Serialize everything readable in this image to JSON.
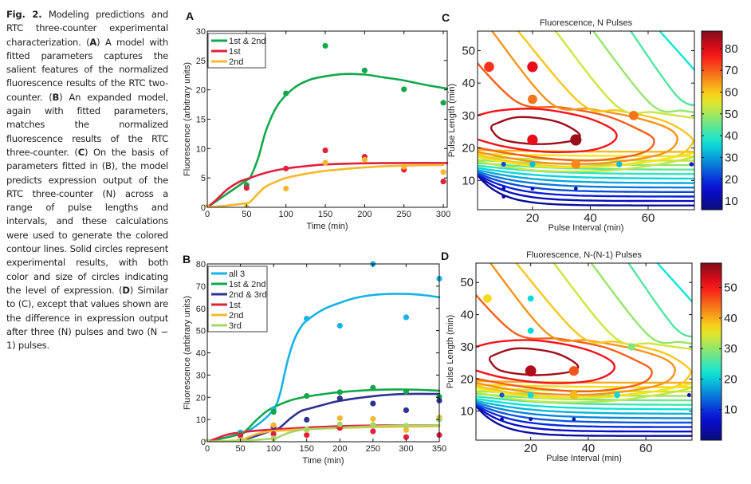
{
  "caption": {
    "fig_label": "Fig. 2.",
    "segments": [
      {
        "t": "Fig. 2.",
        "b": true
      },
      {
        "t": " Modeling predictions and RTC three-counter experimental characterization. ("
      },
      {
        "t": "A",
        "b": true
      },
      {
        "t": ") A model with fitted parameters captures the salient features of the normalized fluorescence results of the RTC two-counter. ("
      },
      {
        "t": "B",
        "b": true
      },
      {
        "t": ") An expanded model, again with fitted parameters, matches the normalized fluorescence results of the RTC three-counter. ("
      },
      {
        "t": "C",
        "b": true
      },
      {
        "t": ") On the basis of parameters fitted in (B), the model predicts expression output of the RTC three-counter (N) across a range of pulse lengths and intervals, and these calculations were used to generate the colored contour lines. Solid circles represent experimental results, with both color and size of circles indicating the level of expression. ("
      },
      {
        "t": "D",
        "b": true
      },
      {
        "t": ") Similar to (C), except that values shown are the difference in expression output after three (N) pulses and two (N − 1) pulses."
      }
    ]
  },
  "chart_data": [
    {
      "panel": "A",
      "type": "line",
      "title": "",
      "xlabel": "Time (min)",
      "ylabel": "Fluorescence (arbitrary units)",
      "xlim": [
        0,
        305
      ],
      "ylim": [
        0,
        30
      ],
      "xticks": [
        0,
        50,
        100,
        150,
        200,
        250,
        300
      ],
      "yticks": [
        0,
        5,
        10,
        15,
        20,
        25,
        30
      ],
      "legend_position": "top-left",
      "series": [
        {
          "name": "1st & 2nd",
          "color": "#12a84a",
          "curve": [
            [
              0,
              0
            ],
            [
              25,
              2.3
            ],
            [
              50,
              4.6
            ],
            [
              55,
              5.2
            ],
            [
              65,
              8.5
            ],
            [
              75,
              13.2
            ],
            [
              90,
              17.5
            ],
            [
              110,
              20.3
            ],
            [
              130,
              21.7
            ],
            [
              150,
              22.3
            ],
            [
              175,
              22.7
            ],
            [
              200,
              22.6
            ],
            [
              225,
              22.1
            ],
            [
              250,
              21.6
            ],
            [
              275,
              20.9
            ],
            [
              305,
              20.2
            ]
          ],
          "points": [
            [
              0,
              0
            ],
            [
              50,
              3.8
            ],
            [
              100,
              19.4
            ],
            [
              150,
              27.5
            ],
            [
              200,
              23.3
            ],
            [
              250,
              20.1
            ],
            [
              300,
              17.8
            ]
          ]
        },
        {
          "name": "1st",
          "color": "#e2203c",
          "curve": [
            [
              0,
              0
            ],
            [
              10,
              1.1
            ],
            [
              25,
              3.0
            ],
            [
              40,
              4.3
            ],
            [
              50,
              4.8
            ],
            [
              75,
              5.9
            ],
            [
              100,
              6.6
            ],
            [
              125,
              7.0
            ],
            [
              150,
              7.3
            ],
            [
              200,
              7.5
            ],
            [
              250,
              7.55
            ],
            [
              305,
              7.55
            ]
          ],
          "points": [
            [
              0,
              0
            ],
            [
              50,
              3.3
            ],
            [
              100,
              6.6
            ],
            [
              150,
              9.7
            ],
            [
              200,
              8.6
            ],
            [
              250,
              6.4
            ],
            [
              300,
              4.4
            ]
          ]
        },
        {
          "name": "2nd",
          "color": "#f4b82e",
          "curve": [
            [
              0,
              0
            ],
            [
              25,
              0.3
            ],
            [
              50,
              0.7
            ],
            [
              55,
              1.0
            ],
            [
              65,
              2.4
            ],
            [
              75,
              3.6
            ],
            [
              90,
              4.5
            ],
            [
              100,
              5.0
            ],
            [
              125,
              5.7
            ],
            [
              150,
              6.2
            ],
            [
              200,
              6.8
            ],
            [
              250,
              7.1
            ],
            [
              300,
              7.2
            ]
          ],
          "points": [
            [
              0,
              0
            ],
            [
              50,
              0
            ],
            [
              100,
              3.2
            ],
            [
              150,
              7.6
            ],
            [
              200,
              8.1
            ],
            [
              250,
              6.9
            ],
            [
              300,
              6.0
            ]
          ]
        }
      ]
    },
    {
      "panel": "B",
      "type": "line",
      "title": "",
      "xlabel": "Time (min)",
      "ylabel": "Fluorescence (arbitrary units)",
      "xlim": [
        0,
        350
      ],
      "ylim": [
        0,
        80
      ],
      "xticks": [
        0,
        50,
        100,
        150,
        200,
        250,
        300,
        350
      ],
      "yticks": [
        0,
        10,
        20,
        30,
        40,
        50,
        60,
        70,
        80
      ],
      "legend_position": "top-left",
      "series": [
        {
          "name": "all 3",
          "color": "#16b2e8",
          "curve": [
            [
              0,
              0
            ],
            [
              50,
              3.5
            ],
            [
              75,
              7.5
            ],
            [
              100,
              14.5
            ],
            [
              110,
              22
            ],
            [
              120,
              35
            ],
            [
              130,
              45
            ],
            [
              140,
              51
            ],
            [
              150,
              54.5
            ],
            [
              175,
              59.5
            ],
            [
              200,
              62.5
            ],
            [
              225,
              64.8
            ],
            [
              250,
              66
            ],
            [
              275,
              66.5
            ],
            [
              300,
              66.5
            ],
            [
              325,
              66
            ],
            [
              350,
              65
            ]
          ],
          "points": [
            [
              0,
              0
            ],
            [
              50,
              4.2
            ],
            [
              100,
              14.5
            ],
            [
              150,
              55.4
            ],
            [
              200,
              52.2
            ],
            [
              250,
              80
            ],
            [
              300,
              56
            ],
            [
              350,
              73.4
            ]
          ]
        },
        {
          "name": "1st & 2nd",
          "color": "#12a84a",
          "curve": [
            [
              0,
              0
            ],
            [
              50,
              3.5
            ],
            [
              60,
              5.5
            ],
            [
              75,
              10
            ],
            [
              90,
              13.8
            ],
            [
              100,
              15.5
            ],
            [
              125,
              18.6
            ],
            [
              150,
              20.3
            ],
            [
              175,
              21.4
            ],
            [
              200,
              22.3
            ],
            [
              250,
              23.3
            ],
            [
              300,
              23.5
            ],
            [
              350,
              23
            ]
          ],
          "points": [
            [
              0,
              0
            ],
            [
              50,
              3.5
            ],
            [
              100,
              13.4
            ],
            [
              150,
              20.6
            ],
            [
              200,
              22.3
            ],
            [
              250,
              24.3
            ],
            [
              300,
              22.6
            ],
            [
              350,
              20.2
            ]
          ]
        },
        {
          "name": "2nd & 3rd",
          "color": "#2e3392",
          "curve": [
            [
              0,
              0
            ],
            [
              50,
              0.7
            ],
            [
              100,
              5.3
            ],
            [
              110,
              6.5
            ],
            [
              125,
              10.4
            ],
            [
              140,
              13.6
            ],
            [
              150,
              14.6
            ],
            [
              175,
              16.6
            ],
            [
              200,
              18.4
            ],
            [
              250,
              20.5
            ],
            [
              300,
              21.5
            ],
            [
              350,
              21.5
            ]
          ],
          "points": [
            [
              0,
              0
            ],
            [
              50,
              0.7
            ],
            [
              100,
              6.8
            ],
            [
              150,
              9.9
            ],
            [
              200,
              19.5
            ],
            [
              250,
              17.2
            ],
            [
              300,
              14.2
            ],
            [
              350,
              18.5
            ]
          ]
        },
        {
          "name": "1st",
          "color": "#e2203c",
          "curve": [
            [
              0,
              0
            ],
            [
              15,
              1.6
            ],
            [
              30,
              3.2
            ],
            [
              50,
              4.2
            ],
            [
              75,
              5
            ],
            [
              100,
              5.5
            ],
            [
              150,
              6.4
            ],
            [
              200,
              7
            ],
            [
              250,
              7.3
            ],
            [
              300,
              7.4
            ],
            [
              350,
              7.4
            ]
          ],
          "points": [
            [
              0,
              0
            ],
            [
              50,
              2.8
            ],
            [
              100,
              3.5
            ],
            [
              150,
              3
            ],
            [
              200,
              6.2
            ],
            [
              250,
              4.7
            ],
            [
              300,
              2.1
            ],
            [
              350,
              3
            ]
          ]
        },
        {
          "name": "2nd",
          "color": "#f4b82e",
          "curve": [
            [
              0,
              0
            ],
            [
              50,
              0.7
            ],
            [
              60,
              1.8
            ],
            [
              75,
              3.5
            ],
            [
              90,
              4.5
            ],
            [
              100,
              4.8
            ],
            [
              150,
              5.7
            ],
            [
              200,
              6.2
            ],
            [
              250,
              6.6
            ],
            [
              300,
              6.8
            ],
            [
              350,
              7
            ]
          ],
          "points": [
            [
              0,
              0
            ],
            [
              50,
              0.7
            ],
            [
              100,
              7.5
            ],
            [
              150,
              5.3
            ],
            [
              200,
              10.6
            ],
            [
              250,
              10.3
            ],
            [
              300,
              5.3
            ],
            [
              350,
              10.9
            ]
          ]
        },
        {
          "name": "3rd",
          "color": "#a8d668",
          "curve": [
            [
              0,
              0
            ],
            [
              50,
              0.4
            ],
            [
              100,
              1.5
            ],
            [
              110,
              2.5
            ],
            [
              125,
              4.2
            ],
            [
              140,
              5.3
            ],
            [
              150,
              5.6
            ],
            [
              200,
              6.3
            ],
            [
              250,
              6.9
            ],
            [
              300,
              7.3
            ],
            [
              350,
              7.4
            ]
          ],
          "points": [
            [
              0,
              0
            ],
            [
              50,
              0.4
            ],
            [
              100,
              1.5
            ],
            [
              150,
              5.6
            ],
            [
              200,
              7.8
            ],
            [
              250,
              7.6
            ],
            [
              300,
              7.2
            ],
            [
              350,
              10
            ]
          ]
        }
      ]
    },
    {
      "panel": "C",
      "type": "contour",
      "title": "Fluorescence, N Pulses",
      "xlabel": "Pulse Interval (min)",
      "ylabel": "Pulse Length (min)",
      "xlim": [
        1,
        76
      ],
      "ylim": [
        1,
        56
      ],
      "xticks": [
        20,
        40,
        60
      ],
      "yticks": [
        10,
        20,
        30,
        40,
        50
      ],
      "colorbar": {
        "range": [
          6,
          88
        ],
        "ticks": [
          10,
          20,
          30,
          40,
          50,
          60,
          70,
          80
        ]
      },
      "peak": {
        "x": 23,
        "y": 24.5,
        "value": 88
      },
      "points": [
        {
          "x": 5,
          "y": 45,
          "value": 74
        },
        {
          "x": 20,
          "y": 45,
          "value": 79
        },
        {
          "x": 20,
          "y": 35,
          "value": 68
        },
        {
          "x": 55,
          "y": 30,
          "value": 68
        },
        {
          "x": 20,
          "y": 22.5,
          "value": 79
        },
        {
          "x": 35,
          "y": 22.5,
          "value": 86
        },
        {
          "x": 10,
          "y": 15,
          "value": 22
        },
        {
          "x": 20,
          "y": 15,
          "value": 33
        },
        {
          "x": 35,
          "y": 15,
          "value": 66
        },
        {
          "x": 50,
          "y": 15,
          "value": 33
        },
        {
          "x": 75,
          "y": 15,
          "value": 18
        },
        {
          "x": 10,
          "y": 7.5,
          "value": 13
        },
        {
          "x": 20,
          "y": 7.5,
          "value": 13
        },
        {
          "x": 35,
          "y": 7.5,
          "value": 12
        },
        {
          "x": 10,
          "y": 5,
          "value": 11
        }
      ]
    },
    {
      "panel": "D",
      "type": "contour",
      "title": "Fluorescence, N-(N-1) Pulses",
      "xlabel": "Pulse Interval (min)",
      "ylabel": "Pulse Length (min)",
      "xlim": [
        1,
        76
      ],
      "ylim": [
        1,
        56
      ],
      "xticks": [
        20,
        40,
        60
      ],
      "yticks": [
        10,
        20,
        30,
        40,
        50
      ],
      "colorbar": {
        "range": [
          0,
          58
        ],
        "ticks": [
          10,
          20,
          30,
          40,
          50
        ]
      },
      "peak": {
        "x": 23,
        "y": 24.5,
        "value": 58
      },
      "points": [
        {
          "x": 5,
          "y": 45,
          "value": 37
        },
        {
          "x": 20,
          "y": 45,
          "value": 21
        },
        {
          "x": 20,
          "y": 35,
          "value": 21
        },
        {
          "x": 55,
          "y": 30,
          "value": 29
        },
        {
          "x": 20,
          "y": 22.5,
          "value": 55
        },
        {
          "x": 35,
          "y": 22.5,
          "value": 46
        },
        {
          "x": 10,
          "y": 15,
          "value": 12
        },
        {
          "x": 20,
          "y": 15,
          "value": 21
        },
        {
          "x": 35,
          "y": 15,
          "value": 39
        },
        {
          "x": 50,
          "y": 15,
          "value": 21
        },
        {
          "x": 75,
          "y": 15,
          "value": 5
        },
        {
          "x": 10,
          "y": 7.5,
          "value": 4
        },
        {
          "x": 20,
          "y": 7.5,
          "value": 4
        },
        {
          "x": 35,
          "y": 7.5,
          "value": 4
        }
      ]
    }
  ]
}
